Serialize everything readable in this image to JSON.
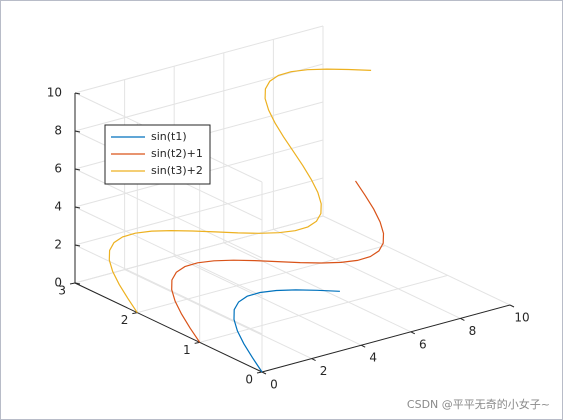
{
  "chart_data": {
    "type": "line3d",
    "xlim": [
      0,
      10
    ],
    "ylim": [
      0,
      3
    ],
    "zlim": [
      0,
      10
    ],
    "xticks": [
      0,
      2,
      4,
      6,
      8,
      10
    ],
    "yticks": [
      0,
      1,
      2,
      3
    ],
    "zticks": [
      0,
      2,
      4,
      6,
      8,
      10
    ],
    "grid": true,
    "legend": "northwest",
    "series": [
      {
        "name": "sin(t1)",
        "color": "#0072BD",
        "x": [
          0,
          0.262,
          0.524,
          0.785,
          1.047,
          1.309,
          1.571,
          1.833,
          2.094,
          2.356,
          2.618,
          2.88,
          3.142
        ],
        "y": [
          0,
          0.259,
          0.5,
          0.707,
          0.866,
          0.966,
          1,
          0.966,
          0.866,
          0.707,
          0.5,
          0.259,
          0
        ],
        "z": [
          0,
          0.262,
          0.524,
          0.785,
          1.047,
          1.309,
          1.571,
          1.833,
          2.094,
          2.356,
          2.618,
          2.88,
          3.142
        ]
      },
      {
        "name": "sin(t2)+1",
        "color": "#D95319",
        "x": [
          0,
          0.262,
          0.524,
          0.785,
          1.047,
          1.309,
          1.571,
          1.833,
          2.094,
          2.356,
          2.618,
          2.88,
          3.142,
          3.403,
          3.665,
          3.927,
          4.189,
          4.451,
          4.712,
          4.974,
          5.236,
          5.498,
          5.76,
          6.021,
          6.283
        ],
        "y": [
          1,
          1.259,
          1.5,
          1.707,
          1.866,
          1.966,
          2,
          1.966,
          1.866,
          1.707,
          1.5,
          1.259,
          1,
          0.741,
          0.5,
          0.293,
          0.134,
          0.034,
          0,
          0.034,
          0.134,
          0.293,
          0.5,
          0.741,
          1
        ],
        "z": [
          0,
          0.262,
          0.524,
          0.785,
          1.047,
          1.309,
          1.571,
          1.833,
          2.094,
          2.356,
          2.618,
          2.88,
          3.142,
          3.403,
          3.665,
          3.927,
          4.189,
          4.451,
          4.712,
          4.974,
          5.236,
          5.498,
          5.76,
          6.021,
          6.283
        ]
      },
      {
        "name": "sin(t3)+2",
        "color": "#EDB120",
        "x": [
          0,
          0.262,
          0.524,
          0.785,
          1.047,
          1.309,
          1.571,
          1.833,
          2.094,
          2.356,
          2.618,
          2.88,
          3.142,
          3.403,
          3.665,
          3.927,
          4.189,
          4.451,
          4.712,
          4.974,
          5.236,
          5.498,
          5.76,
          6.021,
          6.283,
          6.545,
          6.807,
          7.069,
          7.33,
          7.592,
          7.854,
          8.116,
          8.378,
          8.639,
          8.901,
          9.163,
          9.425
        ],
        "y": [
          2,
          2.259,
          2.5,
          2.707,
          2.866,
          2.966,
          3,
          2.966,
          2.866,
          2.707,
          2.5,
          2.259,
          2,
          1.741,
          1.5,
          1.293,
          1.134,
          1.034,
          1,
          1.034,
          1.134,
          1.293,
          1.5,
          1.741,
          2,
          2.259,
          2.5,
          2.707,
          2.866,
          2.966,
          3,
          2.966,
          2.866,
          2.707,
          2.5,
          2.259,
          2
        ],
        "z": [
          0,
          0.262,
          0.524,
          0.785,
          1.047,
          1.309,
          1.571,
          1.833,
          2.094,
          2.356,
          2.618,
          2.88,
          3.142,
          3.403,
          3.665,
          3.927,
          4.189,
          4.451,
          4.712,
          4.974,
          5.236,
          5.498,
          5.76,
          6.021,
          6.283,
          6.545,
          6.807,
          7.069,
          7.33,
          7.592,
          7.854,
          8.116,
          8.378,
          8.639,
          8.901,
          9.163,
          9.425
        ]
      }
    ]
  },
  "watermark": "CSDN @平平无奇的小女子~"
}
